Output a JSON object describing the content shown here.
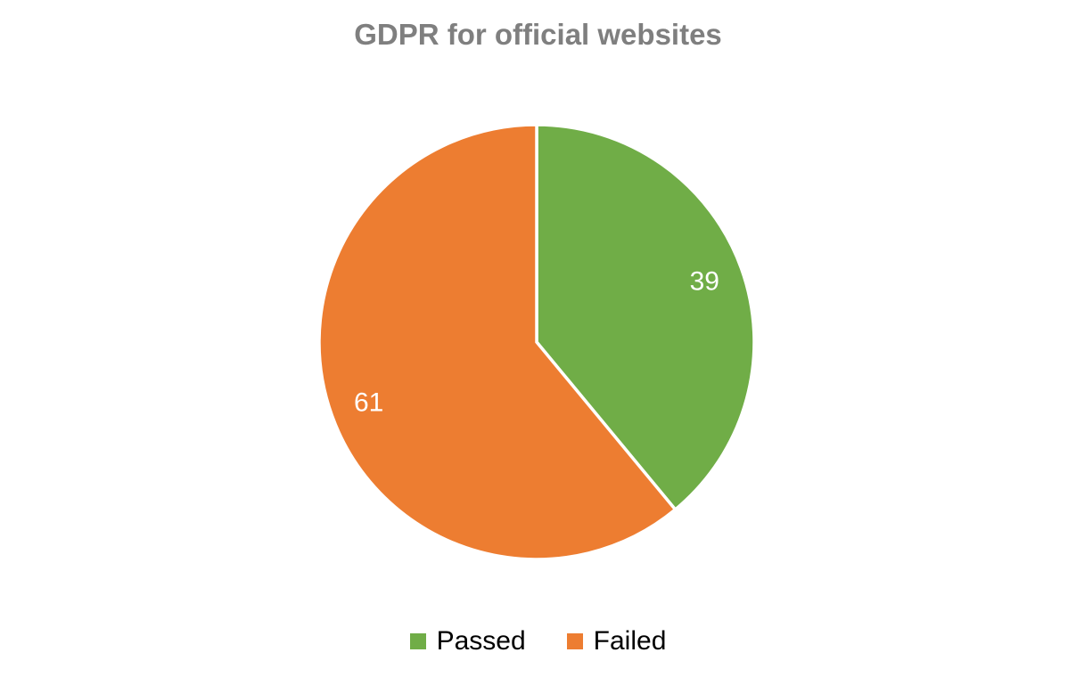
{
  "chart_data": {
    "type": "pie",
    "title": "GDPR for official websites",
    "categories": [
      "Passed",
      "Failed"
    ],
    "values": [
      39,
      61
    ],
    "slices": [
      {
        "label": "Passed",
        "value": 39,
        "color": "#70AD47"
      },
      {
        "label": "Failed",
        "value": 61,
        "color": "#ED7D31"
      }
    ],
    "start_angle_deg": 0,
    "direction": "clockwise",
    "data_labels": {
      "show": true,
      "values": [
        "39",
        "61"
      ],
      "color": "#FFFFFF"
    },
    "legend_position": "bottom",
    "grid": false
  },
  "colors": {
    "background": "#FFFFFF",
    "title_text": "#7F7F7F",
    "legend_text": "#000000",
    "slice_border": "#FFFFFF",
    "passed": "#70AD47",
    "failed": "#ED7D31"
  }
}
